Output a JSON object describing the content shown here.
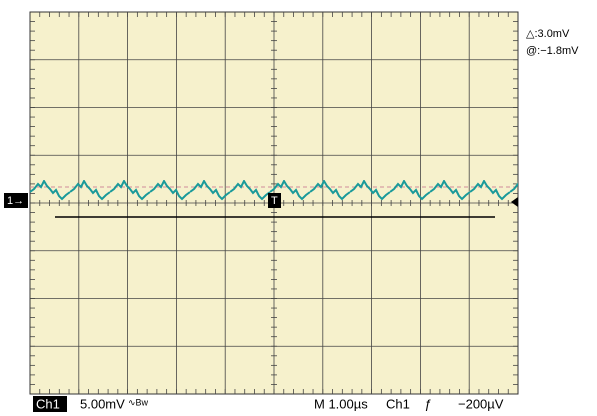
{
  "cursor": {
    "delta": "△:3.0mV",
    "position": "@:−1.8mV"
  },
  "markers": {
    "channel": "1→",
    "trigger": "T"
  },
  "status": {
    "channel": "Ch1",
    "scale": "5.00mV",
    "bandwidth": "∿Bw",
    "timebase": "M 1.00µs",
    "trigger_source": "Ch1",
    "trigger_slope": "ƒ",
    "trigger_level": "−200µV"
  }
}
